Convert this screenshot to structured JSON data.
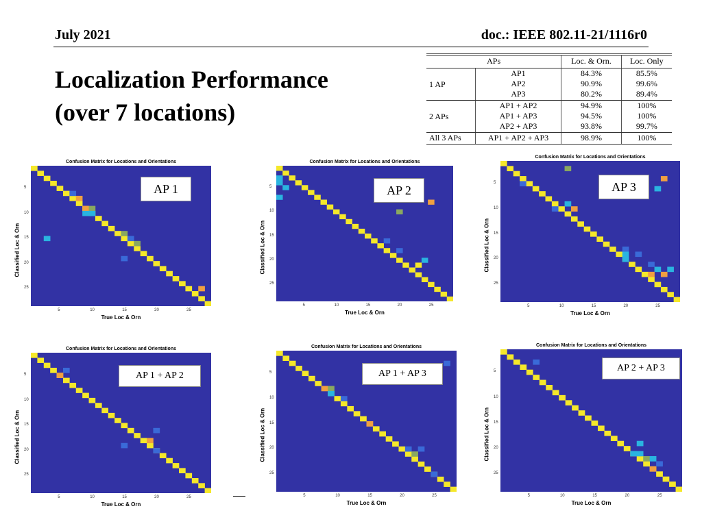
{
  "header": {
    "date": "July 2021",
    "doc": "doc.: IEEE 802.11-21/1116r0"
  },
  "title": {
    "line1": "Localization Performance",
    "line2": "(over 7 locations)"
  },
  "table": {
    "headers": [
      "APs",
      "",
      "Loc. & Orn.",
      "Loc. Only"
    ],
    "groups": [
      {
        "label": "1 AP",
        "rows": [
          {
            "aps": "AP1",
            "loc_orn": "84.3%",
            "loc_only": "85.5%"
          },
          {
            "aps": "AP2",
            "loc_orn": "90.9%",
            "loc_only": "99.6%"
          },
          {
            "aps": "AP3",
            "loc_orn": "80.2%",
            "loc_only": "89.4%"
          }
        ]
      },
      {
        "label": "2 APs",
        "rows": [
          {
            "aps": "AP1 + AP2",
            "loc_orn": "94.9%",
            "loc_only": "100%"
          },
          {
            "aps": "AP1 + AP3",
            "loc_orn": "94.5%",
            "loc_only": "100%"
          },
          {
            "aps": "AP2 + AP3",
            "loc_orn": "93.8%",
            "loc_only": "99.7%"
          }
        ]
      },
      {
        "label": "All 3 APs",
        "rows": [
          {
            "aps": "AP1 + AP2 + AP3",
            "loc_orn": "98.9%",
            "loc_only": "100%"
          }
        ]
      }
    ]
  },
  "colors": {
    "background": "#3232a4",
    "diag": "#f5e82a",
    "cyan": "#2ab4e0",
    "orange": "#f0a040",
    "mid": "#3a6ad8",
    "green": "#8aa860"
  },
  "matrices": [
    {
      "label": "AP 1",
      "title": "Confusion Matrix for Locations and Orientations",
      "xlabel": "True Loc & Orn",
      "ylabel": "Classified Loc & Orn",
      "ticks": [
        "5",
        "10",
        "15",
        "20",
        "25"
      ],
      "offdiag": [
        [
          3,
          15,
          "cyan"
        ],
        [
          7,
          6,
          "mid"
        ],
        [
          8,
          7,
          "orange"
        ],
        [
          9,
          9,
          "orange"
        ],
        [
          10,
          9,
          "green"
        ],
        [
          9,
          10,
          "cyan"
        ],
        [
          10,
          10,
          "cyan"
        ],
        [
          15,
          14,
          "green"
        ],
        [
          16,
          15,
          "mid"
        ],
        [
          17,
          16,
          "green"
        ],
        [
          15,
          19,
          "mid"
        ],
        [
          27,
          25,
          "orange"
        ]
      ]
    },
    {
      "label": "AP 2",
      "title": "Confusion Matrix for Locations and Orientations",
      "xlabel": "True Loc & Orn",
      "ylabel": "Classified Loc & Orn",
      "ticks": [
        "5",
        "10",
        "15",
        "20",
        "25"
      ],
      "offdiag": [
        [
          1,
          3,
          "cyan"
        ],
        [
          1,
          4,
          "cyan"
        ],
        [
          1,
          7,
          "cyan"
        ],
        [
          2,
          5,
          "cyan"
        ],
        [
          20,
          10,
          "green"
        ],
        [
          25,
          8,
          "orange"
        ],
        [
          18,
          16,
          "mid"
        ],
        [
          24,
          20,
          "cyan"
        ],
        [
          20,
          18,
          "mid"
        ],
        [
          23,
          21,
          "yellow"
        ]
      ]
    },
    {
      "label": "AP 3",
      "title": "Confusion Matrix for Locations and Orientations",
      "xlabel": "True Loc & Orn",
      "ylabel": "Classified Loc & Orn",
      "ticks": [
        "5",
        "10",
        "15",
        "20",
        "25"
      ],
      "offdiag": [
        [
          11,
          2,
          "green"
        ],
        [
          4,
          5,
          "mid"
        ],
        [
          26,
          4,
          "orange"
        ],
        [
          25,
          6,
          "cyan"
        ],
        [
          9,
          10,
          "mid"
        ],
        [
          11,
          9,
          "cyan"
        ],
        [
          12,
          10,
          "orange"
        ],
        [
          20,
          18,
          "mid"
        ],
        [
          20,
          19,
          "cyan"
        ],
        [
          20,
          20,
          "cyan"
        ],
        [
          22,
          19,
          "mid"
        ],
        [
          24,
          21,
          "mid"
        ],
        [
          25,
          22,
          "cyan"
        ],
        [
          26,
          23,
          "orange"
        ],
        [
          24,
          23,
          "orange"
        ],
        [
          27,
          22,
          "cyan"
        ]
      ]
    },
    {
      "label": "AP 1 + AP 2",
      "title": "Confusion Matrix for Locations and Orientations",
      "xlabel": "True Loc & Orn",
      "ylabel": "Classified Loc & Orn",
      "ticks": [
        "5",
        "10",
        "15",
        "20",
        "25"
      ],
      "offdiag": [
        [
          6,
          4,
          "mid"
        ],
        [
          5,
          5,
          "orange"
        ],
        [
          20,
          16,
          "mid"
        ],
        [
          19,
          18,
          "orange"
        ],
        [
          20,
          20,
          "mid"
        ],
        [
          15,
          19,
          "mid"
        ]
      ]
    },
    {
      "label": "AP 1 + AP 3",
      "title": "Confusion Matrix for Locations and Orientations",
      "xlabel": "True Loc & Orn",
      "ylabel": "Classified Loc & Orn",
      "ticks": [
        "5",
        "10",
        "15",
        "20",
        "25"
      ],
      "offdiag": [
        [
          27,
          3,
          "mid"
        ],
        [
          8,
          8,
          "orange"
        ],
        [
          9,
          8,
          "green"
        ],
        [
          9,
          9,
          "cyan"
        ],
        [
          11,
          10,
          "mid"
        ],
        [
          15,
          15,
          "orange"
        ],
        [
          21,
          20,
          "mid"
        ],
        [
          22,
          21,
          "green"
        ],
        [
          23,
          20,
          "mid"
        ],
        [
          25,
          25,
          "mid"
        ]
      ]
    },
    {
      "label": "AP 2 + AP 3",
      "title": "Confusion Matrix for Locations and Orientations",
      "xlabel": "True Loc & Orn",
      "ylabel": "Classified Loc & Orn",
      "ticks": [
        "5",
        "10",
        "15",
        "20",
        "25"
      ],
      "offdiag": [
        [
          6,
          3,
          "mid"
        ],
        [
          22,
          19,
          "cyan"
        ],
        [
          21,
          21,
          "cyan"
        ],
        [
          22,
          21,
          "cyan"
        ],
        [
          23,
          22,
          "green"
        ],
        [
          24,
          22,
          "cyan"
        ],
        [
          24,
          24,
          "orange"
        ],
        [
          25,
          23,
          "mid"
        ]
      ]
    }
  ]
}
